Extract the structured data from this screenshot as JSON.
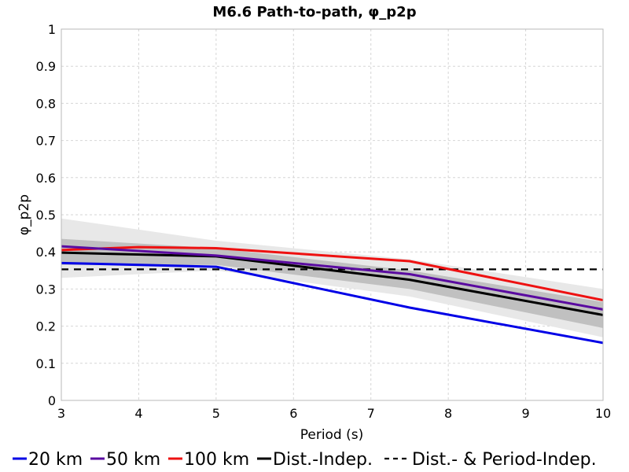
{
  "chart_data": {
    "type": "line",
    "title": "M6.6 Path-to-path, φ_p2p",
    "xlabel": "Period (s)",
    "ylabel": "φ_p2p",
    "xlim": [
      3,
      10
    ],
    "ylim": [
      0,
      1
    ],
    "xticks": [
      3,
      4,
      5,
      6,
      7,
      8,
      9,
      10
    ],
    "yticks": [
      0,
      0.1,
      0.2,
      0.3,
      0.4,
      0.5,
      0.6,
      0.7,
      0.8,
      0.9,
      1
    ],
    "grid": true,
    "legend_position": "bottom",
    "series": [
      {
        "name": "20 km",
        "color": "#0000e6",
        "style": "solid",
        "x": [
          3,
          5,
          7.5,
          10
        ],
        "y": [
          0.37,
          0.36,
          0.25,
          0.155
        ]
      },
      {
        "name": "50 km",
        "color": "#5a0aa0",
        "style": "solid",
        "x": [
          3,
          5,
          7.5,
          10
        ],
        "y": [
          0.415,
          0.39,
          0.34,
          0.245
        ]
      },
      {
        "name": "100 km",
        "color": "#ee1111",
        "style": "solid",
        "x": [
          3,
          4,
          5,
          7.5,
          10
        ],
        "y": [
          0.405,
          0.413,
          0.41,
          0.375,
          0.27
        ]
      },
      {
        "name": "Dist.-Indep.",
        "color": "#000000",
        "style": "solid",
        "x": [
          3,
          5,
          7.5,
          10
        ],
        "y": [
          0.398,
          0.388,
          0.325,
          0.23
        ]
      },
      {
        "name": "Dist.- & Period-Indep.",
        "color": "#000000",
        "style": "dashed",
        "x": [
          3,
          10
        ],
        "y": [
          0.353,
          0.353
        ]
      }
    ],
    "bands": [
      {
        "color": "#e8e8e8",
        "x": [
          3,
          5,
          7.5,
          10
        ],
        "upper": [
          0.49,
          0.43,
          0.38,
          0.3
        ],
        "lower": [
          0.33,
          0.35,
          0.28,
          0.17
        ]
      },
      {
        "color": "#c0c0c0",
        "x": [
          3,
          5,
          7.5,
          10
        ],
        "upper": [
          0.435,
          0.41,
          0.35,
          0.265
        ],
        "lower": [
          0.365,
          0.365,
          0.3,
          0.195
        ]
      }
    ]
  }
}
